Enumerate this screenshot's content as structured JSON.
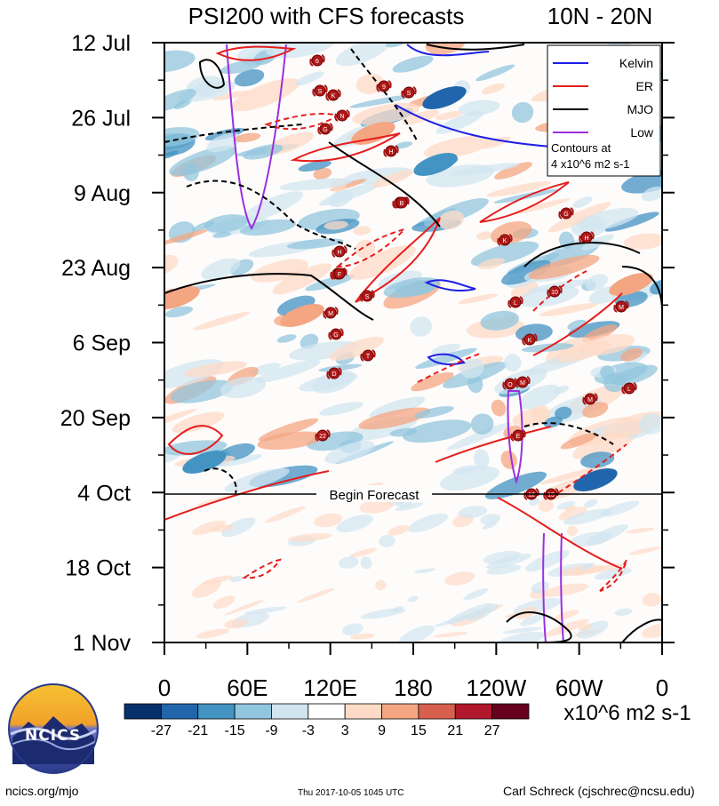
{
  "chart_data": {
    "type": "heatmap",
    "title": "PSI200 with CFS forecasts",
    "region": "10N - 20N",
    "x_ticks": [
      "0",
      "60E",
      "120E",
      "180",
      "120W",
      "60W",
      "0"
    ],
    "y_ticks": [
      "12 Jul",
      "26 Jul",
      "9 Aug",
      "23 Aug",
      "6 Sep",
      "20 Sep",
      "4 Oct",
      "18 Oct",
      "1 Nov"
    ],
    "forecast_line_label": "Begin Forecast",
    "forecast_start": "4 Oct",
    "legend": [
      {
        "name": "Kelvin",
        "color": "#1e1ee6"
      },
      {
        "name": "ER",
        "color": "#e61e1e"
      },
      {
        "name": "MJO",
        "color": "#000000"
      },
      {
        "name": "Low",
        "color": "#9b30e0"
      }
    ],
    "contour_note": [
      "Contours at",
      "4 x10^6 m2 s-1"
    ],
    "colorbar": {
      "levels": [
        "-27",
        "-21",
        "-15",
        "-9",
        "-3",
        "3",
        "9",
        "15",
        "21",
        "27"
      ],
      "colors": [
        "#08306b",
        "#2166ac",
        "#4393c3",
        "#92c5de",
        "#d1e5f0",
        "#ffffff",
        "#fddbc7",
        "#f4a582",
        "#d6604d",
        "#b2182b",
        "#67001f"
      ],
      "units": "x10^6 m2 s-1"
    },
    "storm_markers": [
      "6",
      "S",
      "K",
      "9",
      "S",
      "N",
      "G",
      "H",
      "N",
      "H",
      "E",
      "B",
      "G",
      "H",
      "K",
      "F",
      "S",
      "10",
      "L",
      "M",
      "G",
      "K",
      "T",
      "D",
      "O",
      "M",
      "L",
      "M",
      "22",
      "E",
      "12",
      "13",
      "M"
    ]
  },
  "logo": {
    "text": "NCICS"
  },
  "footer": {
    "left": "ncics.org/mjo",
    "center": "Thu 2017-10-05 1045 UTC",
    "right": "Carl Schreck (cjschrec@ncsu.edu)"
  }
}
